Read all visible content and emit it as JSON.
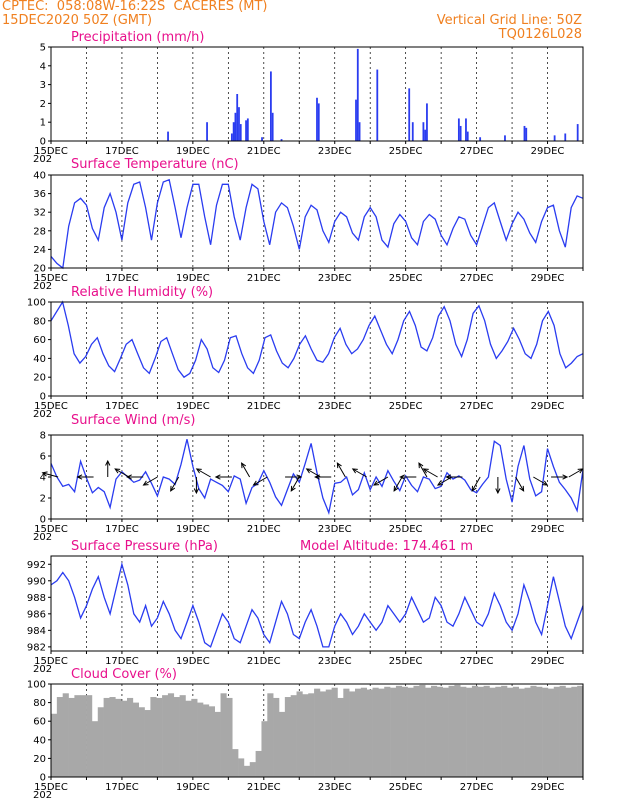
{
  "header": {
    "line1": "CPTEC:  058:08W-16:22S  CACERES (MT)",
    "line2": "15DEC2020 50Z (GMT)",
    "grid_note": "Vertical Grid Line: 50Z",
    "code": "TQ0126L028"
  },
  "colors": {
    "header": "#f08020",
    "title": "#e8108c",
    "series": "#2a3cf0",
    "cloud": "#a8a8a8",
    "arrow": "#000000"
  },
  "x_axis": {
    "day_start": 15,
    "day_end": 30,
    "tick_labels": [
      "15DEC",
      "17DEC",
      "19DEC",
      "21DEC",
      "23DEC",
      "25DEC",
      "27DEC",
      "29DEC"
    ],
    "tick_days": [
      15,
      17,
      19,
      21,
      23,
      25,
      27,
      29
    ],
    "year_label": "202"
  },
  "chart_data": [
    {
      "type": "bar",
      "title": "Precipitation (mm/h)",
      "ylim": [
        0,
        5
      ],
      "yticks": [
        0,
        1,
        2,
        3,
        4,
        5
      ],
      "bars": [
        [
          18.3,
          0.5
        ],
        [
          19.4,
          1.0
        ],
        [
          20.1,
          0.4
        ],
        [
          20.15,
          1.0
        ],
        [
          20.2,
          1.5
        ],
        [
          20.25,
          2.5
        ],
        [
          20.3,
          1.8
        ],
        [
          20.35,
          0.9
        ],
        [
          20.5,
          1.1
        ],
        [
          20.55,
          1.2
        ],
        [
          20.95,
          0.2
        ],
        [
          21.2,
          3.7
        ],
        [
          21.25,
          1.5
        ],
        [
          21.5,
          0.1
        ],
        [
          22.5,
          2.3
        ],
        [
          22.55,
          2.0
        ],
        [
          23.6,
          2.2
        ],
        [
          23.65,
          4.9
        ],
        [
          23.7,
          1.0
        ],
        [
          24.2,
          3.8
        ],
        [
          25.1,
          2.8
        ],
        [
          25.2,
          1.0
        ],
        [
          25.5,
          1.0
        ],
        [
          25.55,
          0.6
        ],
        [
          25.6,
          2.0
        ],
        [
          26.5,
          1.2
        ],
        [
          26.55,
          0.8
        ],
        [
          26.7,
          1.2
        ],
        [
          26.75,
          0.5
        ],
        [
          27.1,
          0.2
        ],
        [
          27.8,
          0.3
        ],
        [
          28.35,
          0.8
        ],
        [
          28.4,
          0.7
        ],
        [
          29.2,
          0.3
        ],
        [
          29.5,
          0.4
        ],
        [
          29.85,
          0.9
        ]
      ]
    },
    {
      "type": "line",
      "title": "Surface Temperature (nC)",
      "ylim": [
        20,
        40
      ],
      "yticks": [
        20,
        24,
        28,
        32,
        36,
        40
      ],
      "values": [
        22.5,
        21.0,
        20.0,
        29.0,
        34.0,
        35.0,
        33.5,
        28.5,
        26.0,
        33.0,
        36.0,
        32.0,
        26.0,
        34.0,
        38.0,
        38.5,
        33.0,
        26.0,
        34.0,
        38.5,
        39.0,
        33.0,
        26.5,
        33.0,
        38.0,
        38.0,
        31.0,
        25.0,
        33.5,
        38.0,
        38.0,
        31.0,
        26.0,
        33.0,
        38.0,
        37.0,
        30.0,
        25.0,
        32.0,
        34.0,
        33.0,
        29.0,
        24.0,
        31.0,
        33.5,
        32.5,
        28.0,
        25.5,
        30.0,
        32.0,
        31.0,
        27.5,
        26.0,
        31.0,
        33.0,
        31.0,
        26.0,
        24.5,
        29.5,
        31.5,
        30.0,
        26.5,
        25.0,
        30.0,
        31.5,
        30.5,
        27.0,
        25.0,
        28.5,
        31.0,
        30.5,
        27.0,
        25.0,
        29.0,
        33.0,
        34.0,
        30.0,
        26.0,
        29.5,
        32.0,
        30.5,
        27.5,
        25.5,
        30.0,
        33.0,
        33.5,
        28.0,
        24.5,
        33.0,
        35.5,
        35.0
      ]
    },
    {
      "type": "line",
      "title": "Relative Humidity (%)",
      "ylim": [
        0,
        100
      ],
      "yticks": [
        0,
        20,
        40,
        60,
        80,
        100
      ],
      "values": [
        80,
        90,
        100,
        75,
        45,
        35,
        42,
        55,
        62,
        45,
        32,
        26,
        40,
        55,
        60,
        45,
        30,
        24,
        40,
        58,
        62,
        45,
        28,
        20,
        24,
        38,
        60,
        50,
        30,
        25,
        38,
        62,
        64,
        45,
        30,
        24,
        38,
        62,
        65,
        48,
        35,
        30,
        40,
        55,
        64,
        50,
        38,
        36,
        45,
        62,
        72,
        55,
        45,
        50,
        60,
        75,
        85,
        70,
        55,
        45,
        60,
        80,
        90,
        75,
        52,
        48,
        62,
        85,
        95,
        80,
        55,
        42,
        60,
        88,
        96,
        80,
        55,
        40,
        48,
        58,
        72,
        60,
        45,
        40,
        55,
        80,
        90,
        75,
        45,
        30,
        35,
        42,
        45
      ]
    },
    {
      "type": "line",
      "title": "Surface Wind (m/s)",
      "ylim": [
        0,
        8
      ],
      "yticks": [
        0,
        2,
        4,
        6,
        8
      ],
      "values": [
        5.3,
        4.0,
        3.1,
        3.3,
        2.6,
        5.5,
        3.9,
        2.5,
        3.0,
        2.6,
        1.1,
        3.8,
        4.5,
        4.0,
        3.5,
        3.7,
        4.5,
        3.4,
        2.2,
        4.0,
        3.8,
        3.3,
        5.2,
        7.6,
        5.0,
        2.9,
        2.0,
        3.8,
        3.5,
        3.2,
        2.6,
        4.1,
        3.8,
        1.5,
        3.0,
        3.4,
        4.6,
        3.5,
        2.1,
        1.3,
        2.8,
        4.3,
        3.5,
        5.3,
        7.2,
        4.4,
        2.0,
        0.6,
        3.4,
        3.5,
        4.0,
        2.3,
        2.8,
        4.4,
        2.8,
        4.0,
        3.1,
        4.6,
        3.6,
        2.7,
        4.1,
        3.2,
        2.6,
        4.0,
        3.8,
        2.9,
        3.1,
        4.4,
        3.8,
        4.1,
        3.7,
        2.8,
        2.5,
        3.3,
        4.0,
        7.4,
        7.0,
        3.8,
        1.6,
        5.0,
        7.0,
        3.8,
        2.2,
        2.6,
        6.7,
        5.0,
        3.5,
        2.8,
        2.0,
        0.8,
        4.7
      ],
      "arrows": [
        [
          15.2,
          9.5
        ],
        [
          16.2,
          9
        ],
        [
          16.6,
          12
        ],
        [
          17.2,
          10
        ],
        [
          17.6,
          9
        ],
        [
          18.0,
          8
        ],
        [
          18.6,
          7
        ],
        [
          19.1,
          6
        ],
        [
          19.5,
          10
        ],
        [
          20.1,
          9
        ],
        [
          20.6,
          11
        ],
        [
          21.1,
          8
        ],
        [
          21.6,
          3
        ],
        [
          22.0,
          7
        ],
        [
          22.6,
          10
        ],
        [
          22.9,
          9
        ],
        [
          23.3,
          11
        ],
        [
          23.9,
          10
        ],
        [
          24.5,
          8
        ],
        [
          24.9,
          7
        ],
        [
          25.3,
          9
        ],
        [
          25.6,
          11
        ],
        [
          25.9,
          10
        ],
        [
          26.3,
          8
        ],
        [
          26.6,
          9
        ],
        [
          27.1,
          7
        ],
        [
          27.6,
          6
        ],
        [
          28.1,
          5
        ],
        [
          28.6,
          4
        ],
        [
          29.1,
          3
        ],
        [
          29.6,
          2
        ]
      ]
    },
    {
      "type": "line",
      "title": "Surface Pressure (hPa)",
      "annotation": "Model Altitude: 174.461  m",
      "ylim": [
        981.5,
        993
      ],
      "yticks": [
        982,
        984,
        986,
        988,
        990,
        992
      ],
      "values": [
        989.5,
        990.0,
        991.0,
        990.0,
        988.0,
        985.5,
        987.0,
        989.0,
        990.5,
        988.0,
        986.0,
        989.0,
        992.0,
        989.5,
        986.0,
        985.0,
        987.0,
        984.5,
        985.5,
        987.5,
        986.0,
        984.0,
        983.0,
        985.0,
        987.0,
        985.0,
        982.5,
        982.0,
        984.0,
        986.0,
        985.0,
        983.0,
        982.5,
        984.5,
        986.5,
        985.5,
        983.5,
        982.5,
        985.0,
        987.5,
        986.0,
        983.5,
        983.0,
        985.0,
        986.5,
        984.5,
        982.0,
        982.0,
        984.5,
        986.0,
        985.0,
        983.5,
        984.5,
        986.0,
        985.0,
        984.0,
        985.0,
        987.0,
        986.0,
        985.0,
        986.0,
        988.0,
        986.5,
        985.0,
        985.5,
        988.0,
        987.0,
        985.0,
        984.5,
        986.0,
        988.0,
        986.5,
        985.0,
        984.5,
        986.0,
        988.5,
        987.0,
        985.0,
        984.0,
        986.0,
        989.5,
        987.5,
        985.0,
        983.5,
        987.0,
        990.5,
        987.5,
        984.5,
        983.0,
        985.0,
        987.0
      ]
    },
    {
      "type": "area",
      "title": "Cloud Cover (%)",
      "ylim": [
        0,
        100
      ],
      "yticks": [
        0,
        20,
        40,
        60,
        80,
        100
      ],
      "values": [
        68,
        86,
        90,
        85,
        88,
        88,
        88,
        60,
        75,
        85,
        86,
        84,
        82,
        85,
        80,
        75,
        72,
        86,
        85,
        88,
        90,
        86,
        88,
        82,
        84,
        80,
        78,
        76,
        70,
        90,
        85,
        30,
        20,
        12,
        16,
        28,
        60,
        90,
        85,
        70,
        86,
        88,
        92,
        89,
        90,
        95,
        92,
        94,
        96,
        85,
        95,
        92,
        95,
        96,
        94,
        96,
        95,
        97,
        96,
        98,
        97,
        96,
        98,
        99,
        96,
        98,
        97,
        96,
        98,
        99,
        97,
        96,
        98,
        97,
        98,
        96,
        97,
        98,
        96,
        97,
        95,
        96,
        98,
        97,
        96,
        95,
        97,
        98,
        96,
        97,
        98
      ]
    }
  ]
}
